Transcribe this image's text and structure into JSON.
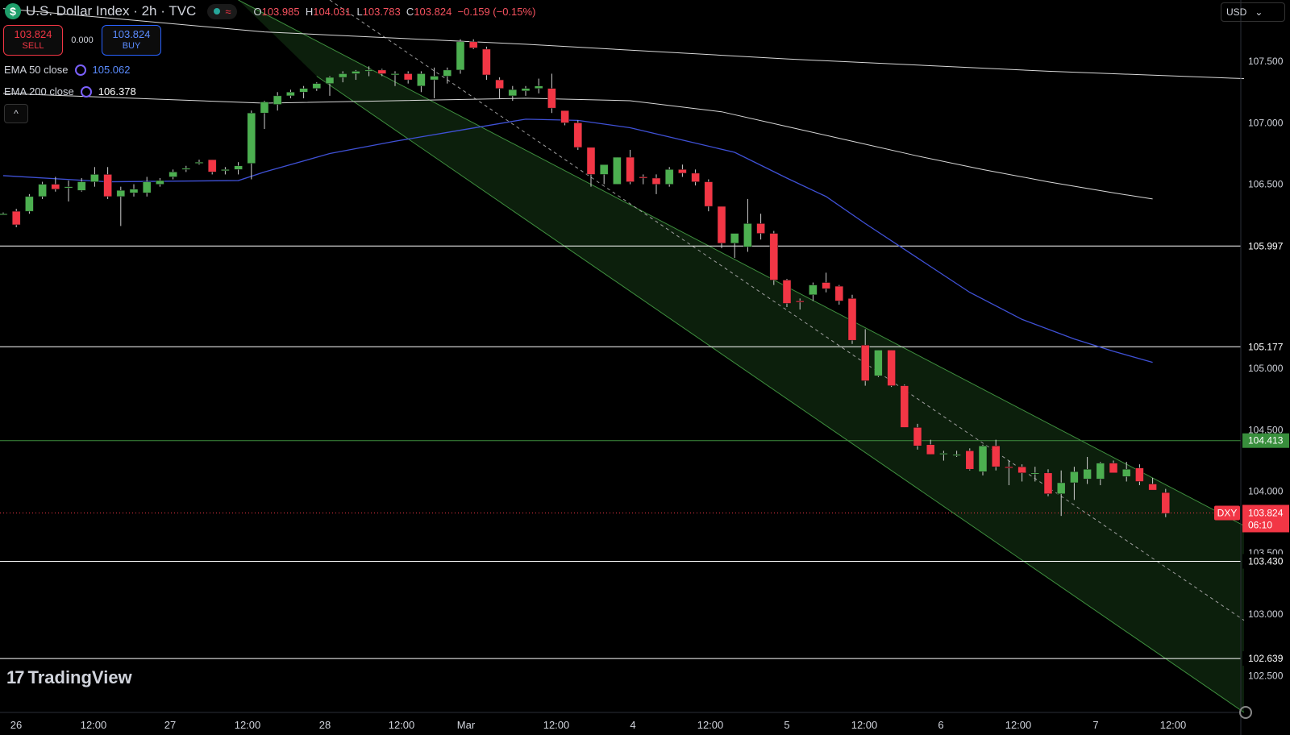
{
  "header": {
    "title": "U.S. Dollar Index · 2h · TVC",
    "logo_symbol": "$",
    "status_icon": "≈",
    "ohlc": {
      "o_label": "O",
      "o": "103.985",
      "h_label": "H",
      "h": "104.031",
      "l_label": "L",
      "l": "103.783",
      "c_label": "C",
      "c": "103.824",
      "change": "−0.159 (−0.15%)"
    }
  },
  "trade": {
    "sell_price": "103.824",
    "sell_label": "SELL",
    "spread": "0.000",
    "buy_price": "103.824",
    "buy_label": "BUY"
  },
  "indicators": [
    {
      "label": "EMA 50 close",
      "value": "105.062",
      "color": "#2962ff"
    },
    {
      "label": "EMA 200 close",
      "value": "106.378",
      "color": "#ffffff"
    }
  ],
  "collapse_icon": "^",
  "currency": {
    "label": "USD",
    "chevron": "⌄"
  },
  "watermark": {
    "logo": "17",
    "text": "TradingView"
  },
  "colors": {
    "up": "#4caf50",
    "down": "#f23645",
    "ema50": "#3f51d6",
    "ema200": "#d9d9d9",
    "channel_fill": "#0c1f0c",
    "channel_line": "#3e8e3e",
    "h_line": "#ffffff",
    "green_level": "#3e8e3e"
  },
  "chart_data": {
    "type": "candlestick",
    "symbol": "DXY",
    "price_label": "103.824",
    "countdown": "06:10",
    "ylim": [
      102.2,
      108.0
    ],
    "y_ticks": [
      "107.500",
      "107.000",
      "106.500",
      "105.000",
      "104.500",
      "104.000",
      "103.500",
      "103.000",
      "102.500"
    ],
    "x_ticks": [
      "26",
      "12:00",
      "27",
      "12:00",
      "28",
      "12:00",
      "Mar",
      "12:00",
      "4",
      "12:00",
      "5",
      "12:00",
      "6",
      "12:00",
      "7",
      "12:00"
    ],
    "horizontal_levels": [
      {
        "value": 105.997,
        "label": "105.997",
        "kind": "white"
      },
      {
        "value": 105.177,
        "label": "105.177",
        "kind": "white"
      },
      {
        "value": 104.413,
        "label": "104.413",
        "kind": "green"
      },
      {
        "value": 103.43,
        "label": "103.430",
        "kind": "white"
      },
      {
        "value": 102.639,
        "label": "102.639",
        "kind": "white"
      }
    ],
    "candles": [
      [
        106.26,
        106.27,
        106.25,
        106.26
      ],
      [
        106.28,
        106.3,
        106.15,
        106.17
      ],
      [
        106.28,
        106.42,
        106.26,
        106.4
      ],
      [
        106.4,
        106.52,
        106.38,
        106.5
      ],
      [
        106.5,
        106.56,
        106.44,
        106.46
      ],
      [
        106.47,
        106.53,
        106.36,
        106.48
      ],
      [
        106.45,
        106.55,
        106.44,
        106.52
      ],
      [
        106.52,
        106.64,
        106.48,
        106.58
      ],
      [
        106.58,
        106.64,
        106.38,
        106.4
      ],
      [
        106.4,
        106.48,
        106.16,
        106.45
      ],
      [
        106.43,
        106.5,
        106.4,
        106.46
      ],
      [
        106.43,
        106.56,
        106.4,
        106.52
      ],
      [
        106.5,
        106.55,
        106.48,
        106.53
      ],
      [
        106.56,
        106.62,
        106.54,
        106.6
      ],
      [
        106.62,
        106.65,
        106.6,
        106.63
      ],
      [
        106.68,
        106.7,
        106.66,
        106.68
      ],
      [
        106.7,
        106.7,
        106.58,
        106.6
      ],
      [
        106.62,
        106.64,
        106.58,
        106.62
      ],
      [
        106.62,
        106.68,
        106.58,
        106.65
      ],
      [
        106.67,
        107.1,
        106.54,
        107.08
      ],
      [
        107.08,
        107.18,
        106.95,
        107.17
      ],
      [
        107.15,
        107.25,
        107.1,
        107.22
      ],
      [
        107.22,
        107.27,
        107.2,
        107.25
      ],
      [
        107.25,
        107.3,
        107.2,
        107.28
      ],
      [
        107.28,
        107.33,
        107.26,
        107.32
      ],
      [
        107.32,
        107.38,
        107.22,
        107.37
      ],
      [
        107.37,
        107.42,
        107.33,
        107.4
      ],
      [
        107.4,
        107.43,
        107.35,
        107.42
      ],
      [
        107.42,
        107.46,
        107.38,
        107.43
      ],
      [
        107.43,
        107.44,
        107.38,
        107.4
      ],
      [
        107.4,
        107.42,
        107.3,
        107.4
      ],
      [
        107.4,
        107.42,
        107.32,
        107.35
      ],
      [
        107.3,
        107.42,
        107.25,
        107.4
      ],
      [
        107.35,
        107.45,
        107.2,
        107.38
      ],
      [
        107.38,
        107.45,
        107.32,
        107.43
      ],
      [
        107.43,
        107.68,
        107.4,
        107.66
      ],
      [
        107.66,
        107.68,
        107.6,
        107.61
      ],
      [
        107.6,
        107.62,
        107.35,
        107.39
      ],
      [
        107.35,
        107.37,
        107.2,
        107.28
      ],
      [
        107.22,
        107.3,
        107.18,
        107.27
      ],
      [
        107.26,
        107.3,
        107.22,
        107.28
      ],
      [
        107.28,
        107.36,
        107.24,
        107.3
      ],
      [
        107.28,
        107.4,
        107.08,
        107.12
      ],
      [
        107.1,
        107.1,
        106.98,
        107.0
      ],
      [
        107.0,
        107.02,
        106.78,
        106.8
      ],
      [
        106.8,
        106.8,
        106.48,
        106.58
      ],
      [
        106.58,
        106.65,
        106.5,
        106.66
      ],
      [
        106.5,
        106.72,
        106.5,
        106.72
      ],
      [
        106.72,
        106.78,
        106.5,
        106.52
      ],
      [
        106.56,
        106.58,
        106.5,
        106.55
      ],
      [
        106.55,
        106.58,
        106.42,
        106.5
      ],
      [
        106.5,
        106.64,
        106.48,
        106.62
      ],
      [
        106.62,
        106.66,
        106.56,
        106.59
      ],
      [
        106.59,
        106.62,
        106.49,
        106.52
      ],
      [
        106.52,
        106.54,
        106.28,
        106.32
      ],
      [
        106.32,
        106.32,
        105.98,
        106.02
      ],
      [
        106.02,
        106.06,
        105.9,
        106.1
      ],
      [
        105.99,
        106.38,
        105.95,
        106.18
      ],
      [
        106.18,
        106.26,
        106.05,
        106.1
      ],
      [
        106.1,
        106.12,
        105.68,
        105.72
      ],
      [
        105.72,
        105.73,
        105.5,
        105.53
      ],
      [
        105.55,
        105.57,
        105.48,
        105.54
      ],
      [
        105.6,
        105.7,
        105.55,
        105.68
      ],
      [
        105.7,
        105.78,
        105.62,
        105.65
      ],
      [
        105.67,
        105.68,
        105.52,
        105.55
      ],
      [
        105.57,
        105.6,
        105.2,
        105.23
      ],
      [
        105.19,
        105.32,
        104.86,
        104.9
      ],
      [
        104.94,
        105.15,
        104.93,
        105.15
      ],
      [
        105.15,
        105.15,
        104.85,
        104.86
      ],
      [
        104.86,
        104.87,
        104.52,
        104.52
      ],
      [
        104.52,
        104.55,
        104.34,
        104.37
      ],
      [
        104.38,
        104.42,
        104.3,
        104.3
      ],
      [
        104.3,
        104.33,
        104.25,
        104.31
      ],
      [
        104.3,
        104.33,
        104.28,
        104.3
      ],
      [
        104.33,
        104.35,
        104.17,
        104.18
      ],
      [
        104.16,
        104.38,
        104.13,
        104.37
      ],
      [
        104.37,
        104.42,
        104.17,
        104.2
      ],
      [
        104.2,
        104.25,
        104.05,
        104.19
      ],
      [
        104.2,
        104.22,
        104.08,
        104.15
      ],
      [
        104.15,
        104.2,
        104.08,
        104.15
      ],
      [
        104.15,
        104.18,
        103.96,
        103.98
      ],
      [
        103.98,
        104.17,
        103.8,
        104.07
      ],
      [
        104.07,
        104.2,
        103.93,
        104.16
      ],
      [
        104.1,
        104.28,
        104.06,
        104.18
      ],
      [
        104.1,
        104.24,
        104.05,
        104.23
      ],
      [
        104.23,
        104.25,
        104.15,
        104.15
      ],
      [
        104.12,
        104.24,
        104.08,
        104.18
      ],
      [
        104.19,
        104.22,
        104.05,
        104.08
      ],
      [
        104.06,
        104.11,
        104.03,
        104.01
      ],
      [
        103.99,
        104.02,
        103.79,
        103.82
      ]
    ],
    "ema50": [
      [
        0,
        106.57
      ],
      [
        8,
        106.52
      ],
      [
        18,
        106.53
      ],
      [
        20,
        106.6
      ],
      [
        25,
        106.75
      ],
      [
        30,
        106.85
      ],
      [
        35,
        106.94
      ],
      [
        40,
        107.03
      ],
      [
        44,
        107.02
      ],
      [
        48,
        106.96
      ],
      [
        52,
        106.86
      ],
      [
        56,
        106.76
      ],
      [
        60,
        106.55
      ],
      [
        63,
        106.4
      ],
      [
        66,
        106.18
      ],
      [
        70,
        105.9
      ],
      [
        74,
        105.62
      ],
      [
        78,
        105.4
      ],
      [
        82,
        105.24
      ],
      [
        85,
        105.14
      ],
      [
        88,
        105.05
      ]
    ],
    "ema200": [
      [
        0,
        107.24
      ],
      [
        20,
        107.16
      ],
      [
        40,
        107.2
      ],
      [
        48,
        107.18
      ],
      [
        55,
        107.09
      ],
      [
        60,
        106.97
      ],
      [
        65,
        106.85
      ],
      [
        70,
        106.73
      ],
      [
        75,
        106.62
      ],
      [
        80,
        106.52
      ],
      [
        85,
        106.43
      ],
      [
        88,
        106.38
      ]
    ],
    "ema_top": [
      [
        0,
        107.93
      ],
      [
        20,
        107.74
      ],
      [
        40,
        107.64
      ],
      [
        60,
        107.52
      ],
      [
        80,
        107.42
      ],
      [
        95,
        107.36
      ]
    ],
    "channel": {
      "upper": [
        [
          18,
          108.0
        ],
        [
          95,
          103.72
        ]
      ],
      "mid": [
        [
          25,
          108.0
        ],
        [
          95,
          102.95
        ]
      ],
      "lower": [
        [
          24,
          107.38
        ],
        [
          95,
          102.2
        ]
      ]
    }
  }
}
